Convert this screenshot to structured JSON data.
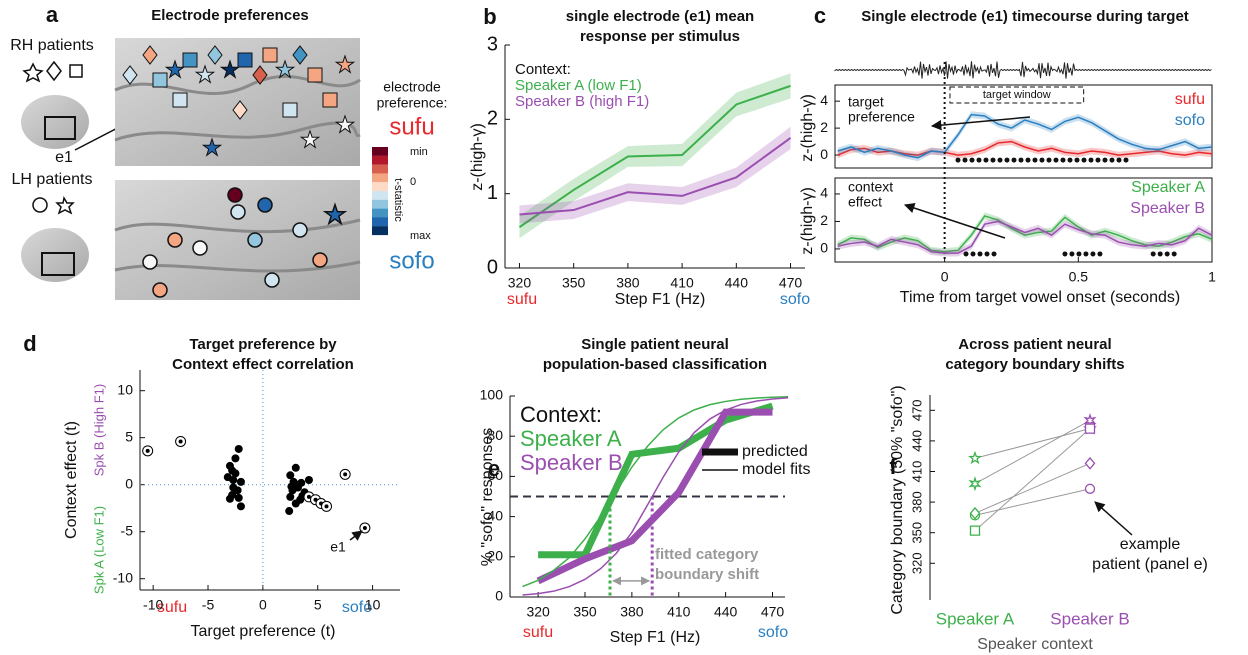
{
  "electrode_map": {
    "panel": "a",
    "title": "Electrode preferences",
    "rh_label": "RH patients",
    "lh_label": "LH patients",
    "electrode_label": "e1",
    "legend_title": [
      "electrode",
      "preference:"
    ],
    "high_label": "sufu",
    "low_label": "sofo",
    "colorbar_label": "t-statistic",
    "colorbar_ticks": [
      "min",
      "0",
      "max"
    ]
  },
  "chart_data": [
    {
      "panel": "b",
      "type": "line",
      "title": [
        "single electrode (e1)  mean",
        "response per stimulus"
      ],
      "legend_title": "Context:",
      "x": [
        320,
        350,
        380,
        410,
        440,
        470
      ],
      "xlim": [
        312,
        478
      ],
      "xticks": [
        320,
        350,
        380,
        410,
        440,
        470
      ],
      "ylim": [
        0,
        3
      ],
      "yticks": [
        0,
        1,
        2,
        3
      ],
      "x_label": "Step F1 (Hz)",
      "y_label": "z-(high-γ)",
      "x_end_labels": [
        {
          "text": "sufu",
          "color": "#e8282b"
        },
        {
          "text": "sofo",
          "color": "#2a7fc1"
        }
      ],
      "series": [
        {
          "name": "Speaker A (low F1)",
          "color": "#3db04b",
          "width": 2,
          "values": [
            0.55,
            1.05,
            1.5,
            1.52,
            2.2,
            2.45
          ],
          "errors": [
            0.15,
            0.15,
            0.14,
            0.15,
            0.16,
            0.17
          ]
        },
        {
          "name": "Speaker B (high F1)",
          "color": "#9a4fb0",
          "width": 2,
          "values": [
            0.72,
            0.78,
            1.02,
            0.97,
            1.22,
            1.75
          ],
          "errors": [
            0.12,
            0.12,
            0.12,
            0.12,
            0.13,
            0.15
          ]
        }
      ]
    },
    {
      "panel": "c",
      "type": "line",
      "box": true,
      "title": [
        "Single electrode (e1) timecourse during target"
      ],
      "x": [
        -0.4,
        -0.35,
        -0.3,
        -0.25,
        -0.2,
        -0.15,
        -0.1,
        -0.05,
        0,
        0.05,
        0.1,
        0.15,
        0.2,
        0.25,
        0.3,
        0.35,
        0.4,
        0.45,
        0.5,
        0.55,
        0.6,
        0.65,
        0.7,
        0.75,
        0.8,
        0.85,
        0.9,
        0.95,
        1
      ],
      "xlim": [
        -0.41,
        1.0
      ],
      "ylim": [
        -0.96,
        5.2
      ],
      "yticks": [
        0,
        2,
        4
      ],
      "y_label": "z-(high-γ)",
      "annotation": [
        "target",
        "preference"
      ],
      "target_window": {
        "label": "target window",
        "range": [
          0.02,
          0.52
        ]
      },
      "significance": [
        [
          0.05,
          0.7
        ]
      ],
      "series": [
        {
          "name": "sufu",
          "color": "#e8282b",
          "width": 1.5,
          "band": 0.25,
          "values": [
            0.0,
            0.4,
            0.5,
            0.2,
            0.3,
            0.1,
            0.0,
            0.3,
            0.2,
            0.0,
            0.1,
            0.4,
            0.9,
            1.0,
            0.6,
            0.3,
            0.5,
            0.2,
            0.1,
            0.3,
            0.2,
            0.0,
            0.1,
            0.2,
            0.3,
            0.1,
            0.0,
            0.2,
            0.1
          ]
        },
        {
          "name": "sofo",
          "color": "#2a7fc1",
          "width": 1.5,
          "band": 0.25,
          "values": [
            0.3,
            0.6,
            0.2,
            0.5,
            0.3,
            0.0,
            -0.2,
            0.3,
            0.2,
            1.5,
            3.0,
            2.9,
            2.3,
            2.0,
            2.6,
            2.3,
            1.9,
            2.5,
            2.8,
            2.4,
            1.8,
            1.2,
            0.8,
            0.5,
            0.4,
            0.7,
            1.0,
            0.5,
            0.6
          ]
        }
      ]
    },
    {
      "panel": null,
      "type": "line",
      "box": true,
      "x": [
        -0.4,
        -0.35,
        -0.3,
        -0.25,
        -0.2,
        -0.15,
        -0.1,
        -0.05,
        0,
        0.05,
        0.1,
        0.15,
        0.2,
        0.25,
        0.3,
        0.35,
        0.4,
        0.45,
        0.5,
        0.55,
        0.6,
        0.65,
        0.7,
        0.75,
        0.8,
        0.85,
        0.9,
        0.95,
        1
      ],
      "xlim": [
        -0.41,
        1.0
      ],
      "xticks": [
        0,
        0.5,
        1
      ],
      "ylim": [
        -0.95,
        5.16
      ],
      "yticks": [
        0,
        2,
        4
      ],
      "x_label": "Time from target vowel onset (seconds)",
      "y_label": "z-(high-γ)",
      "annotation": [
        "context",
        "effect"
      ],
      "significance": [
        [
          0.08,
          0.2
        ],
        [
          0.45,
          0.6
        ],
        [
          0.78,
          0.87
        ]
      ],
      "series": [
        {
          "name": "Speaker A",
          "color": "#3db04b",
          "width": 1.5,
          "band": 0.25,
          "values": [
            0.3,
            0.8,
            0.7,
            0.1,
            0.5,
            0.8,
            0.6,
            -0.1,
            -0.2,
            -0.1,
            1.0,
            2.4,
            2.1,
            1.5,
            1.0,
            1.2,
            1.3,
            2.3,
            1.6,
            1.0,
            1.3,
            1.0,
            0.6,
            0.3,
            0.2,
            0.5,
            0.9,
            1.1,
            0.7
          ]
        },
        {
          "name": "Speaker B",
          "color": "#9a4fb0",
          "width": 1.5,
          "band": 0.25,
          "values": [
            0.2,
            0.4,
            0.5,
            0.2,
            0.7,
            0.5,
            0.3,
            -0.2,
            -0.3,
            -0.3,
            0.2,
            1.8,
            2.0,
            1.6,
            1.2,
            1.5,
            1.0,
            1.8,
            1.4,
            1.1,
            1.0,
            0.5,
            0.3,
            0.2,
            0.4,
            0.3,
            0.6,
            1.5,
            1.0
          ]
        }
      ]
    },
    {
      "panel": "d",
      "type": "scatter",
      "crosshair": true,
      "title": [
        "Target preference by",
        "Context effect correlation"
      ],
      "xlim": [
        -11.2,
        12.5
      ],
      "xticks": [
        -10,
        -5,
        0,
        5,
        10
      ],
      "ylim": [
        -11.2,
        12.2
      ],
      "yticks": [
        -10,
        -5,
        0,
        5,
        10
      ],
      "x_label": "Target preference (t)",
      "y_label": "Context effect (t)",
      "y_side_labels": [
        {
          "text": "Spk B (High F1)",
          "color": "#9a4fb0"
        },
        {
          "text": "Spk A (Low F1)",
          "color": "#3db04b"
        }
      ],
      "x_end_labels": [
        {
          "text": "sufu",
          "color": "#e8282b"
        },
        {
          "text": "sofo",
          "color": "#2a7fc1"
        }
      ],
      "annotation": "e1",
      "series": [
        {
          "marker": "dot",
          "color": "#000000",
          "x": [
            -3,
            -2.8,
            -2.2,
            -2.5,
            -2.7,
            -2,
            -3.2,
            -2.3,
            -2.8,
            -2.2,
            -2,
            -3,
            -2.5,
            -2.7,
            2.5,
            3,
            2.7,
            3.2,
            2.5,
            3,
            2.4,
            3.5,
            3.8,
            3.4,
            2.8,
            4.2,
            3.6,
            2.6
          ],
          "values": [
            2,
            1.5,
            3.8,
            1.2,
            0.5,
            0.3,
            0.8,
            -0.6,
            -1.1,
            -1.4,
            -2.3,
            -1.5,
            2.8,
            -0.3,
            1.0,
            1.8,
            -0.6,
            -0.3,
            -1.3,
            -2.0,
            -2.8,
            0.2,
            -0.8,
            -1.6,
            0.3,
            0.5,
            -1.2,
            -0.2
          ]
        },
        {
          "marker": "ring",
          "color": "#000000",
          "x": [
            -10.5,
            -7.5,
            4.2,
            4.8,
            5.3,
            5.8,
            7.5,
            9.3
          ],
          "values": [
            3.6,
            4.6,
            -1.3,
            -1.6,
            -2.0,
            -2.3,
            1.1,
            -4.6
          ]
        }
      ]
    },
    {
      "panel": "e",
      "type": "line",
      "title": [
        "Single patient neural",
        "population-based classification"
      ],
      "legend_title": "Context:",
      "x": [
        320,
        350,
        380,
        410,
        440,
        470
      ],
      "xlim": [
        302,
        478
      ],
      "xticks": [
        320,
        350,
        380,
        410,
        440,
        470
      ],
      "ylim": [
        0,
        100
      ],
      "yticks": [
        0,
        20,
        40,
        60,
        80,
        100
      ],
      "x_label": "Step F1 (Hz)",
      "y_label": "% \"sofo\" responses",
      "yref": 50,
      "x_end_labels": [
        {
          "text": "sufu",
          "color": "#e8282b"
        },
        {
          "text": "sofo",
          "color": "#2a7fc1"
        }
      ],
      "style_legend": [
        {
          "label": "predicted",
          "width": 7
        },
        {
          "label": "model fits",
          "width": 1.5
        }
      ],
      "boundaries": [
        {
          "value": 366,
          "color": "#3db04b"
        },
        {
          "value": 393,
          "color": "#9a4fb0"
        }
      ],
      "annotation": [
        "fitted category",
        "boundary shift"
      ],
      "series": [
        {
          "name": "Speaker A",
          "color": "#3db04b",
          "width": 7,
          "values": [
            21,
            21,
            71,
            74,
            88,
            95
          ]
        },
        {
          "name": "Speaker B",
          "color": "#9a4fb0",
          "width": 7,
          "values": [
            8,
            19,
            28,
            52,
            92,
            92
          ]
        },
        {
          "color": "#3db04b",
          "width": 1.5,
          "x": [
            310,
            320,
            330,
            340,
            350,
            360,
            370,
            380,
            390,
            400,
            410,
            420,
            430,
            440,
            450,
            460,
            470,
            480
          ],
          "values": [
            5.2,
            8.3,
            13.3,
            19.6,
            28.9,
            40.1,
            52.5,
            64.6,
            75.0,
            83.2,
            89.1,
            93.1,
            95.7,
            97.3,
            98.4,
            99.0,
            99.4,
            99.6
          ]
        },
        {
          "color": "#9a4fb0",
          "width": 1.5,
          "x": [
            310,
            320,
            330,
            340,
            350,
            360,
            370,
            380,
            390,
            400,
            410,
            420,
            430,
            440,
            450,
            460,
            470,
            480
          ],
          "values": [
            1.0,
            1.7,
            2.9,
            5.2,
            8.8,
            14.1,
            21.7,
            32.2,
            45.8,
            59.6,
            72.2,
            81.9,
            88.6,
            93.0,
            95.8,
            97.5,
            98.5,
            99.1
          ]
        }
      ]
    },
    {
      "panel": "f",
      "type": "dot",
      "title": [
        "Across patient neural",
        "category boundary shifts"
      ],
      "categories": [
        "Speaker A",
        "Speaker B"
      ],
      "category_colors": [
        "#3db04b",
        "#9a4fb0"
      ],
      "ylim": [
        284,
        485
      ],
      "yticks": [
        320,
        350,
        380,
        410,
        440,
        470
      ],
      "x_label": "Speaker context",
      "y_label": "Category boundary (50% \"sofo\")",
      "annotation": [
        "example",
        "patient (panel e)"
      ],
      "series": [
        {
          "marker": "star5",
          "values": [
            423,
            452
          ]
        },
        {
          "marker": "star6",
          "values": [
            398,
            460
          ]
        },
        {
          "marker": "square",
          "values": [
            352,
            452
          ]
        },
        {
          "marker": "circle",
          "values": [
            367,
            393
          ]
        },
        {
          "marker": "diamond",
          "values": [
            369,
            418
          ]
        }
      ]
    }
  ]
}
